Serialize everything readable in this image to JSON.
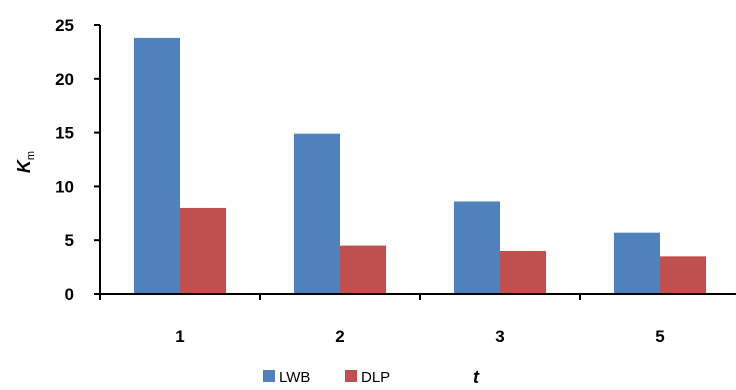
{
  "chart_data": {
    "type": "bar",
    "categories": [
      "1",
      "2",
      "3",
      "5"
    ],
    "series": [
      {
        "name": "LWB",
        "values": [
          23.8,
          14.9,
          8.6,
          5.7
        ],
        "color": "#4f81bd"
      },
      {
        "name": "DLP",
        "values": [
          8.0,
          4.5,
          4.0,
          3.5
        ],
        "color": "#c0504d"
      }
    ],
    "ylabel": {
      "main": "K",
      "sub": "m"
    },
    "xlabel": "t",
    "ylim": [
      0,
      25
    ],
    "yticks": [
      0,
      5,
      10,
      15,
      20,
      25
    ],
    "grid": false,
    "legend_position": "bottom"
  }
}
